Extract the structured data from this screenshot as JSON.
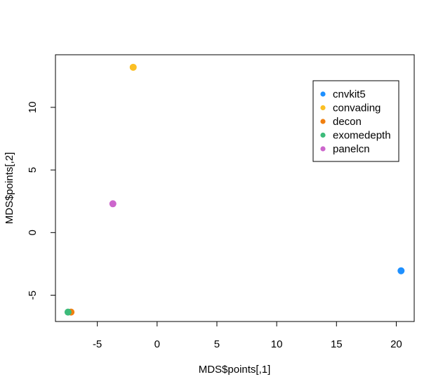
{
  "chart_data": {
    "type": "scatter",
    "title": "",
    "xlabel": "MDS$points[,1]",
    "ylabel": "MDS$points[,2]",
    "xlim": [
      -8.5,
      21.5
    ],
    "ylim": [
      -7.1,
      14.2
    ],
    "x_ticks": [
      -5,
      0,
      5,
      10,
      15,
      20
    ],
    "y_ticks": [
      -5,
      0,
      5,
      10
    ],
    "grid": false,
    "legend_position": "top-right",
    "series": [
      {
        "name": "cnvkit5",
        "color": "#1E90FF",
        "points": [
          [
            20.4,
            -3.05
          ]
        ]
      },
      {
        "name": "convading",
        "color": "#FBBF24",
        "points": [
          [
            -2.0,
            13.2
          ]
        ]
      },
      {
        "name": "decon",
        "color": "#F07F0F",
        "points": [
          [
            -7.2,
            -6.35
          ]
        ]
      },
      {
        "name": "exomedepth",
        "color": "#3DBB7A",
        "points": [
          [
            -7.45,
            -6.35
          ]
        ]
      },
      {
        "name": "panelcn",
        "color": "#CC66CC",
        "points": [
          [
            -3.7,
            2.3
          ]
        ]
      }
    ]
  }
}
